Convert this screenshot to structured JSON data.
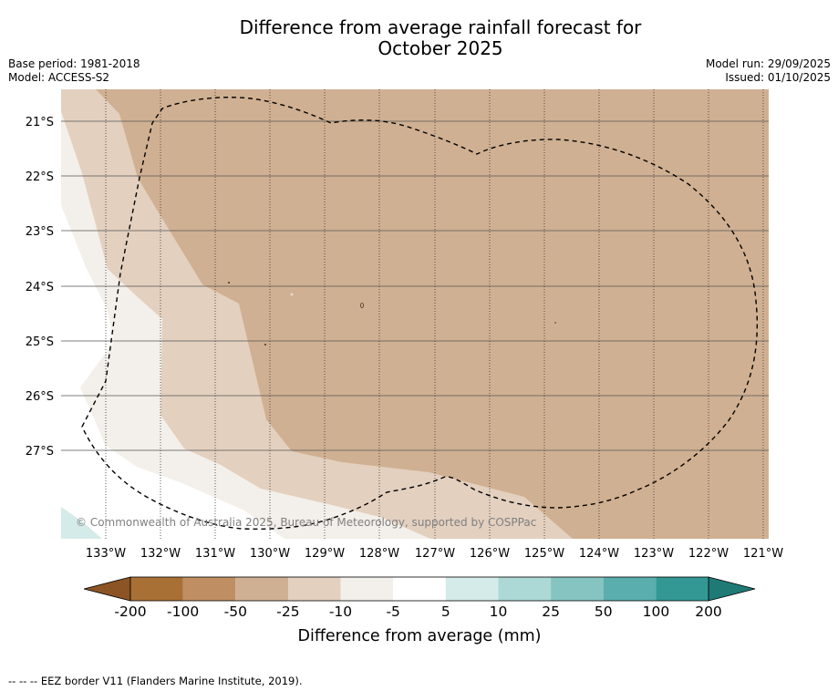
{
  "title": {
    "line1": "Difference from average rainfall forecast for",
    "line2": "October 2025"
  },
  "meta_left": {
    "base_period": "Base period: 1981-2018",
    "model": "Model: ACCESS-S2"
  },
  "meta_right": {
    "model_run": "Model run: 29/09/2025",
    "issued": "Issued: 01/10/2025"
  },
  "map": {
    "lat_labels": [
      "21°S",
      "22°S",
      "23°S",
      "24°S",
      "25°S",
      "26°S",
      "27°S"
    ],
    "lon_labels": [
      "133°W",
      "132°W",
      "131°W",
      "130°W",
      "129°W",
      "128°W",
      "127°W",
      "126°W",
      "125°W",
      "124°W",
      "123°W",
      "122°W",
      "121°W"
    ],
    "copyright": "© Commonwealth of Australia 2025, Bureau of Meteorology, supported by COSPPac",
    "colors": {
      "band_-50_-25": "#d0b092",
      "band_-25_-10": "#e3d0bf",
      "band_-10_-5": "#f3efea",
      "band_5_10": "#d5ebe9"
    }
  },
  "colorbar": {
    "tick_labels": [
      "-200",
      "-100",
      "-50",
      "-25",
      "-10",
      "-5",
      "5",
      "10",
      "25",
      "50",
      "100",
      "200"
    ],
    "colors": [
      "#a97036",
      "#bf8f63",
      "#d0b092",
      "#e3d0bf",
      "#f3efea",
      "#ffffff",
      "#d5ebe9",
      "#acd8d6",
      "#86c4c1",
      "#5aaead",
      "#339894"
    ],
    "under_color": "#8c5424",
    "over_color": "#1f7a76",
    "label": "Difference from average (mm)"
  },
  "footer": {
    "legend": "-- -- -- EEZ border V11 (Flanders Marine Institute, 2019)."
  }
}
